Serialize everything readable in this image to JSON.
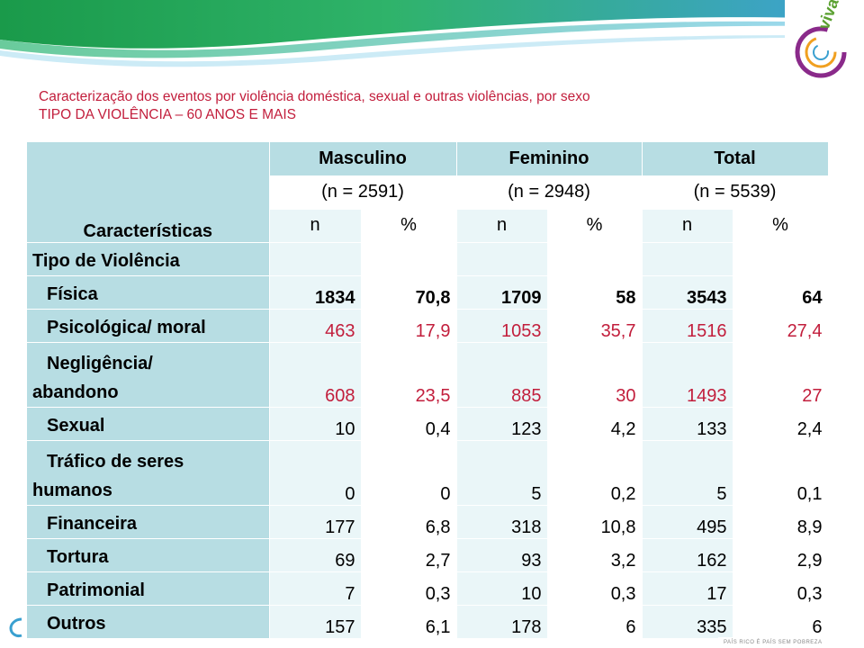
{
  "subtitle": {
    "line1": "Caracterização dos eventos por violência doméstica, sexual e outras violências, por sexo",
    "line2": "TIPO DA VIOLÊNCIA – 60 ANOS E MAIS"
  },
  "table": {
    "corner_label": "Características",
    "groups": [
      {
        "label": "Masculino",
        "n_total": "(n = 2591)"
      },
      {
        "label": "Feminino",
        "n_total": "(n = 2948)"
      },
      {
        "label": "Total",
        "n_total": "(n = 5539)"
      }
    ],
    "sub_headers": [
      "n",
      "%",
      "n",
      "%",
      "n",
      "%"
    ],
    "section_label": "Tipo de Violência",
    "rows": [
      {
        "label": "Física",
        "values": [
          "1834",
          "70,8",
          "1709",
          "58",
          "3543",
          "64"
        ],
        "style": "bold"
      },
      {
        "label": "Psicológica/ moral",
        "values": [
          "463",
          "17,9",
          "1053",
          "35,7",
          "1516",
          "27,4"
        ],
        "style": "red"
      },
      {
        "label_line1": "Negligência/",
        "label_line2": "abandono",
        "values": [
          "608",
          "23,5",
          "885",
          "30",
          "1493",
          "27"
        ],
        "style": "red"
      },
      {
        "label": "Sexual",
        "values": [
          "10",
          "0,4",
          "123",
          "4,2",
          "133",
          "2,4"
        ],
        "style": "plain"
      },
      {
        "label_line1": "Tráfico de seres",
        "label_line2": "humanos",
        "values": [
          "0",
          "0",
          "5",
          "0,2",
          "5",
          "0,1"
        ],
        "style": "plain"
      },
      {
        "label": "Financeira",
        "values": [
          "177",
          "6,8",
          "318",
          "10,8",
          "495",
          "8,9"
        ],
        "style": "plain"
      },
      {
        "label": "Tortura",
        "values": [
          "69",
          "2,7",
          "93",
          "3,2",
          "162",
          "2,9"
        ],
        "style": "plain"
      },
      {
        "label": "Patrimonial",
        "values": [
          "7",
          "0,3",
          "10",
          "0,3",
          "17",
          "0,3"
        ],
        "style": "plain"
      },
      {
        "label": "Outros",
        "values": [
          "157",
          "6,1",
          "178",
          "6",
          "335",
          "6"
        ],
        "style": "plain"
      }
    ]
  },
  "colors": {
    "header_bg": "#b7dde3",
    "light_bg": "#eaf6f8",
    "accent_red": "#c21e3c",
    "banner_green": "#2fa35a",
    "banner_blue": "#1e7fc0"
  },
  "logo": {
    "text": "viva",
    "icon": "spiral-logo-icon"
  },
  "footer": {
    "text": "PAÍS RICO É PAÍS SEM POBREZA"
  }
}
